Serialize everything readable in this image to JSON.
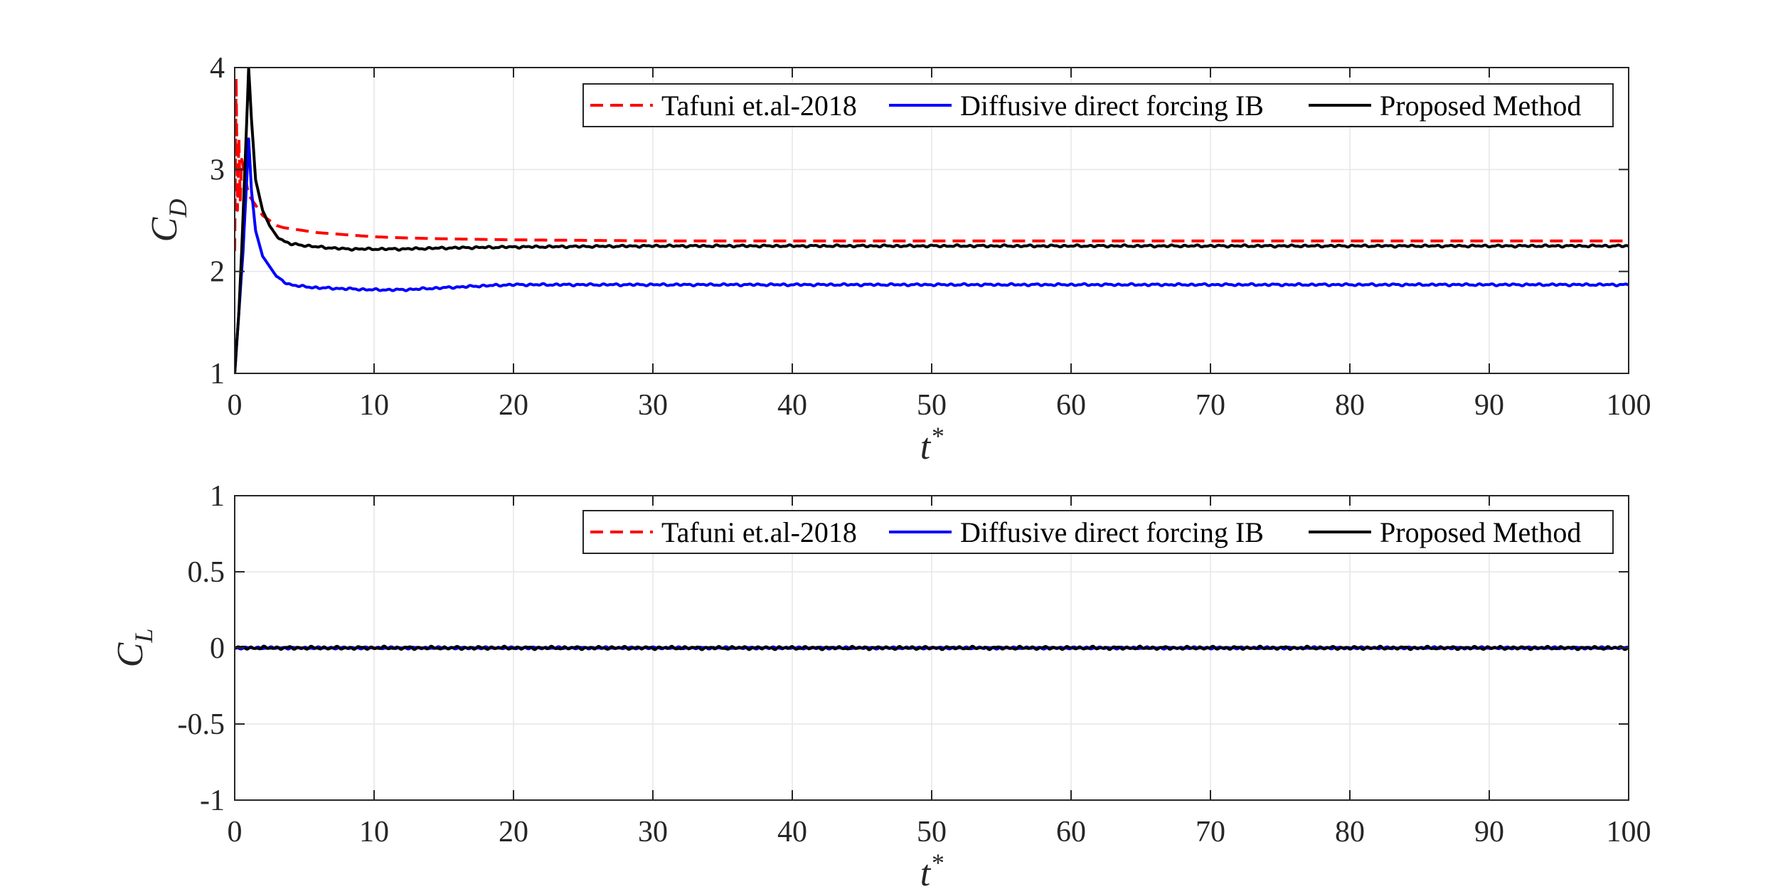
{
  "colors": {
    "tafuni": "#ff0000",
    "diffusive": "#0000ff",
    "proposed": "#000000",
    "grid": "#e6e6e6",
    "axis": "#262626"
  },
  "chart_data": [
    {
      "type": "line",
      "ylabel_main": "C",
      "ylabel_sub": "D",
      "xlabel_main": "t",
      "xlabel_sup": "*",
      "xlim": [
        0,
        100
      ],
      "ylim": [
        1,
        4
      ],
      "xticks": [
        0,
        10,
        20,
        30,
        40,
        50,
        60,
        70,
        80,
        90,
        100
      ],
      "yticks": [
        1,
        2,
        3,
        4
      ],
      "xtick_labels": [
        "0",
        "10",
        "20",
        "30",
        "40",
        "50",
        "60",
        "70",
        "80",
        "90",
        "100"
      ],
      "ytick_labels": [
        "1",
        "2",
        "3",
        "4"
      ],
      "grid": true,
      "legend_position": "top-right",
      "series": [
        {
          "name": "Tafuni et.al-2018",
          "style": "dashed",
          "color": "#ff0000",
          "points": [
            [
              0,
              2.2
            ],
            [
              0.1,
              3.9
            ],
            [
              0.2,
              2.6
            ],
            [
              0.3,
              3.3
            ],
            [
              0.4,
              2.7
            ],
            [
              0.5,
              3.1
            ],
            [
              0.8,
              2.9
            ],
            [
              1.0,
              2.75
            ],
            [
              1.5,
              2.65
            ],
            [
              2.0,
              2.55
            ],
            [
              2.5,
              2.5
            ],
            [
              3.0,
              2.45
            ],
            [
              3.5,
              2.43
            ],
            [
              4,
              2.42
            ],
            [
              5,
              2.4
            ],
            [
              6,
              2.38
            ],
            [
              8,
              2.36
            ],
            [
              10,
              2.34
            ],
            [
              12,
              2.33
            ],
            [
              15,
              2.32
            ],
            [
              20,
              2.31
            ],
            [
              30,
              2.3
            ],
            [
              100,
              2.3
            ]
          ]
        },
        {
          "name": "Diffusive direct forcing IB",
          "style": "solid",
          "color": "#0000ff",
          "points": [
            [
              0,
              1.0
            ],
            [
              0.3,
              1.6
            ],
            [
              0.6,
              2.2
            ],
            [
              0.9,
              3.0
            ],
            [
              1.0,
              3.3
            ],
            [
              1.2,
              2.8
            ],
            [
              1.5,
              2.4
            ],
            [
              2.0,
              2.15
            ],
            [
              2.5,
              2.05
            ],
            [
              3.0,
              1.95
            ],
            [
              3.5,
              1.9
            ],
            [
              4,
              1.87
            ],
            [
              5,
              1.85
            ],
            [
              6,
              1.84
            ],
            [
              8,
              1.83
            ],
            [
              10,
              1.82
            ],
            [
              12,
              1.82
            ],
            [
              15,
              1.84
            ],
            [
              18,
              1.86
            ],
            [
              20,
              1.87
            ],
            [
              25,
              1.87
            ],
            [
              100,
              1.87
            ]
          ]
        },
        {
          "name": "Proposed Method",
          "style": "solid",
          "color": "#000000",
          "points": [
            [
              0,
              1.0
            ],
            [
              0.3,
              1.6
            ],
            [
              0.5,
              2.2
            ],
            [
              0.7,
              2.9
            ],
            [
              0.9,
              3.6
            ],
            [
              1.0,
              4.0
            ],
            [
              1.2,
              3.5
            ],
            [
              1.5,
              2.9
            ],
            [
              2.0,
              2.6
            ],
            [
              2.5,
              2.45
            ],
            [
              3.0,
              2.35
            ],
            [
              3.5,
              2.3
            ],
            [
              4,
              2.27
            ],
            [
              6,
              2.24
            ],
            [
              8,
              2.22
            ],
            [
              10,
              2.22
            ],
            [
              12,
              2.22
            ],
            [
              15,
              2.23
            ],
            [
              20,
              2.24
            ],
            [
              30,
              2.25
            ],
            [
              100,
              2.25
            ]
          ]
        }
      ]
    },
    {
      "type": "line",
      "ylabel_main": "C",
      "ylabel_sub": "L",
      "xlabel_main": "t",
      "xlabel_sup": "*",
      "xlim": [
        0,
        100
      ],
      "ylim": [
        -1,
        1
      ],
      "xticks": [
        0,
        10,
        20,
        30,
        40,
        50,
        60,
        70,
        80,
        90,
        100
      ],
      "yticks": [
        -1,
        -0.5,
        0,
        0.5,
        1
      ],
      "xtick_labels": [
        "0",
        "10",
        "20",
        "30",
        "40",
        "50",
        "60",
        "70",
        "80",
        "90",
        "100"
      ],
      "ytick_labels": [
        "-1",
        "-0.5",
        "0",
        "0.5",
        "1"
      ],
      "grid": true,
      "legend_position": "top-right",
      "series": [
        {
          "name": "Tafuni et.al-2018",
          "style": "dashed",
          "color": "#ff0000",
          "points": [
            [
              0,
              0.0
            ],
            [
              100,
              0.0
            ]
          ]
        },
        {
          "name": "Diffusive direct forcing IB",
          "style": "solid",
          "color": "#0000ff",
          "points": [
            [
              0,
              0.0
            ],
            [
              100,
              0.0
            ]
          ]
        },
        {
          "name": "Proposed Method",
          "style": "solid",
          "color": "#000000",
          "points": [
            [
              0,
              0.0
            ],
            [
              100,
              0.0
            ]
          ]
        }
      ]
    }
  ]
}
